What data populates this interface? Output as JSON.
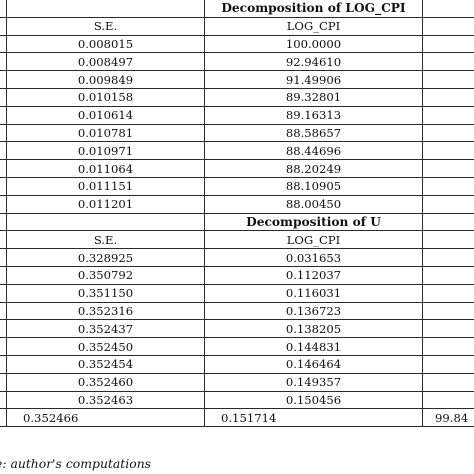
{
  "panel1": {
    "decomposition_title": "Decomposition of LOG_CPI",
    "se_header": "S.E.",
    "var_header": "LOG_CPI",
    "rows": [
      {
        "se": "0.008015",
        "value": "100.0000"
      },
      {
        "se": "0.008497",
        "value": "92.94610"
      },
      {
        "se": "0.009849",
        "value": "91.49906"
      },
      {
        "se": "0.010158",
        "value": "89.32801"
      },
      {
        "se": "0.010614",
        "value": "89.16313"
      },
      {
        "se": "0.010781",
        "value": "88.58657"
      },
      {
        "se": "0.010971",
        "value": "88.44696"
      },
      {
        "se": "0.011064",
        "value": "88.20249"
      },
      {
        "se": "0.011151",
        "value": "88.10905"
      },
      {
        "se": "0.011201",
        "value": "88.00450"
      }
    ]
  },
  "panel2": {
    "decomposition_title": "Decomposition of U",
    "se_header": "S.E.",
    "var_header": "LOG_CPI",
    "rows": [
      {
        "se": "0.328925",
        "value": "0.031653"
      },
      {
        "se": "0.350792",
        "value": "0.112037"
      },
      {
        "se": "0.351150",
        "value": "0.116031"
      },
      {
        "se": "0.352316",
        "value": "0.136723"
      },
      {
        "se": "0.352437",
        "value": "0.138205"
      },
      {
        "se": "0.352450",
        "value": "0.144831"
      },
      {
        "se": "0.352454",
        "value": "0.146464"
      },
      {
        "se": "0.352460",
        "value": "0.149357"
      },
      {
        "se": "0.352463",
        "value": "0.150456"
      }
    ],
    "last_row": {
      "se": "0.352466",
      "value": "0.151714",
      "extra": "99.84"
    }
  },
  "source_note": "e: author's computations"
}
